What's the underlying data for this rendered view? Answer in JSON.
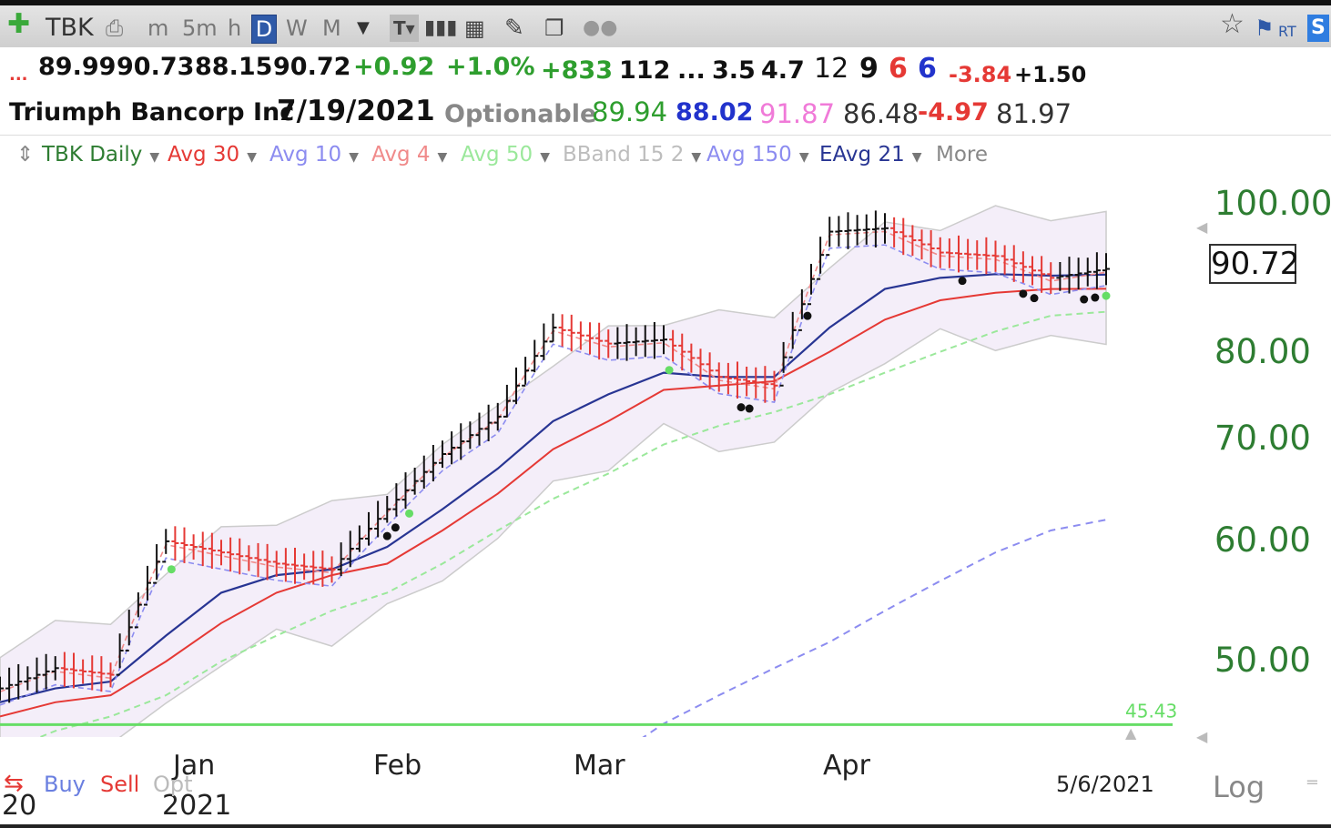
{
  "toolbar": {
    "symbol": "TBK",
    "intervals": [
      "m",
      "5m",
      "h",
      "D",
      "W",
      "M"
    ],
    "active_interval": "D"
  },
  "quote": {
    "open": "89.99",
    "high": "90.73",
    "low": "88.15",
    "close": "90.72",
    "change": "+0.92",
    "change_pct": "+1.0%",
    "volume_change": "+833",
    "volume": "112",
    "ellipsis": "...",
    "v1": "3.5",
    "v2": "4.7",
    "v3": "12",
    "v4": "9",
    "v5": "6",
    "v6": "6",
    "v7": "-3.84",
    "v8": "+1.50",
    "dots": "...",
    "company": "Triumph Bancorp Inc",
    "date": "7/19/2021",
    "optionable": "Optionable",
    "ma1": "89.94",
    "ma2": "88.02",
    "ma3": "91.87",
    "ma4": "86.48",
    "ma5": "-4.97",
    "ma6": "81.97"
  },
  "legend": {
    "items": [
      {
        "label": "TBK Daily",
        "color": "#2e7d32"
      },
      {
        "label": "Avg 30",
        "color": "#e53935"
      },
      {
        "label": "Avg 10",
        "color": "#8c8cf0"
      },
      {
        "label": "Avg 4",
        "color": "#f08a8a"
      },
      {
        "label": "Avg 50",
        "color": "#9be89b"
      },
      {
        "label": "BBand 15 2",
        "color": "#bdbdbd"
      },
      {
        "label": "Avg 150",
        "color": "#8c8cf0"
      },
      {
        "label": "EAvg 21",
        "color": "#283593"
      }
    ],
    "more": "More"
  },
  "axis": {
    "price_ticks": [
      "100.00",
      "80.00",
      "70.00",
      "60.00",
      "50.00"
    ],
    "last_price": "90.72",
    "hline_value": "45.43",
    "months": [
      "Jan",
      "Feb",
      "Mar",
      "Apr"
    ],
    "year": "2021",
    "year_prev": "20",
    "date_marker": "5/6/2021"
  },
  "bottom": {
    "buy": "Buy",
    "sell": "Sell",
    "opt": "Opt",
    "log": "Log"
  },
  "colors": {
    "up_bar": "#111111",
    "down_bar": "#e53935",
    "ema21": "#283593",
    "avg30": "#e53935",
    "avg10": "#8c8cf0",
    "avg4": "#f08a8a",
    "avg50": "#9be89b",
    "avg150": "#8c8cf0",
    "bband": "#cccccc",
    "hline": "#66dd66"
  },
  "chart_data": {
    "type": "line",
    "title": "",
    "scale": "log",
    "ylim": [
      43,
      104
    ],
    "legend_position": "top-left",
    "grid": false,
    "x": [
      "2020-12-22",
      "2020-12-29",
      "2021-01-05",
      "2021-01-12",
      "2021-01-19",
      "2021-01-26",
      "2021-02-02",
      "2021-02-09",
      "2021-02-16",
      "2021-02-23",
      "2021-03-02",
      "2021-03-09",
      "2021-03-16",
      "2021-03-23",
      "2021-03-30",
      "2021-04-06",
      "2021-04-13",
      "2021-04-20",
      "2021-04-27",
      "2021-05-04",
      "2021-05-06"
    ],
    "series": [
      {
        "name": "TBK Daily",
        "values": [
          48.0,
          49.5,
          49.0,
          60.0,
          59.0,
          58.0,
          57.5,
          63.0,
          68.5,
          72.5,
          83.0,
          81.0,
          81.5,
          77.0,
          76.0,
          96.0,
          96.5,
          93.0,
          92.5,
          89.5,
          90.72
        ]
      },
      {
        "name": "EAvg 21",
        "values": [
          47.0,
          48.0,
          48.5,
          52.0,
          55.5,
          57.0,
          57.5,
          59.5,
          63.0,
          67.0,
          72.0,
          75.0,
          77.5,
          77.0,
          77.0,
          83.0,
          88.0,
          89.5,
          90.0,
          89.8,
          89.94
        ]
      },
      {
        "name": "Avg 30",
        "values": [
          46.0,
          47.0,
          47.5,
          50.0,
          53.0,
          55.5,
          57.0,
          58.0,
          61.0,
          64.5,
          69.0,
          72.0,
          75.5,
          76.0,
          76.5,
          80.0,
          84.0,
          86.5,
          87.5,
          88.0,
          88.02
        ]
      },
      {
        "name": "Avg 50",
        "values": [
          43.5,
          45.0,
          46.0,
          47.5,
          50.0,
          52.0,
          54.0,
          55.5,
          58.0,
          61.0,
          64.0,
          66.5,
          69.5,
          71.5,
          73.0,
          75.0,
          77.5,
          80.0,
          82.5,
          84.5,
          85.0
        ]
      },
      {
        "name": "Avg 150",
        "values": [
          null,
          null,
          null,
          null,
          null,
          null,
          null,
          null,
          null,
          null,
          41.0,
          43.0,
          45.5,
          47.5,
          49.5,
          51.5,
          54.0,
          56.5,
          59.0,
          61.0,
          62.0
        ]
      }
    ],
    "hlines": [
      45.43
    ]
  }
}
